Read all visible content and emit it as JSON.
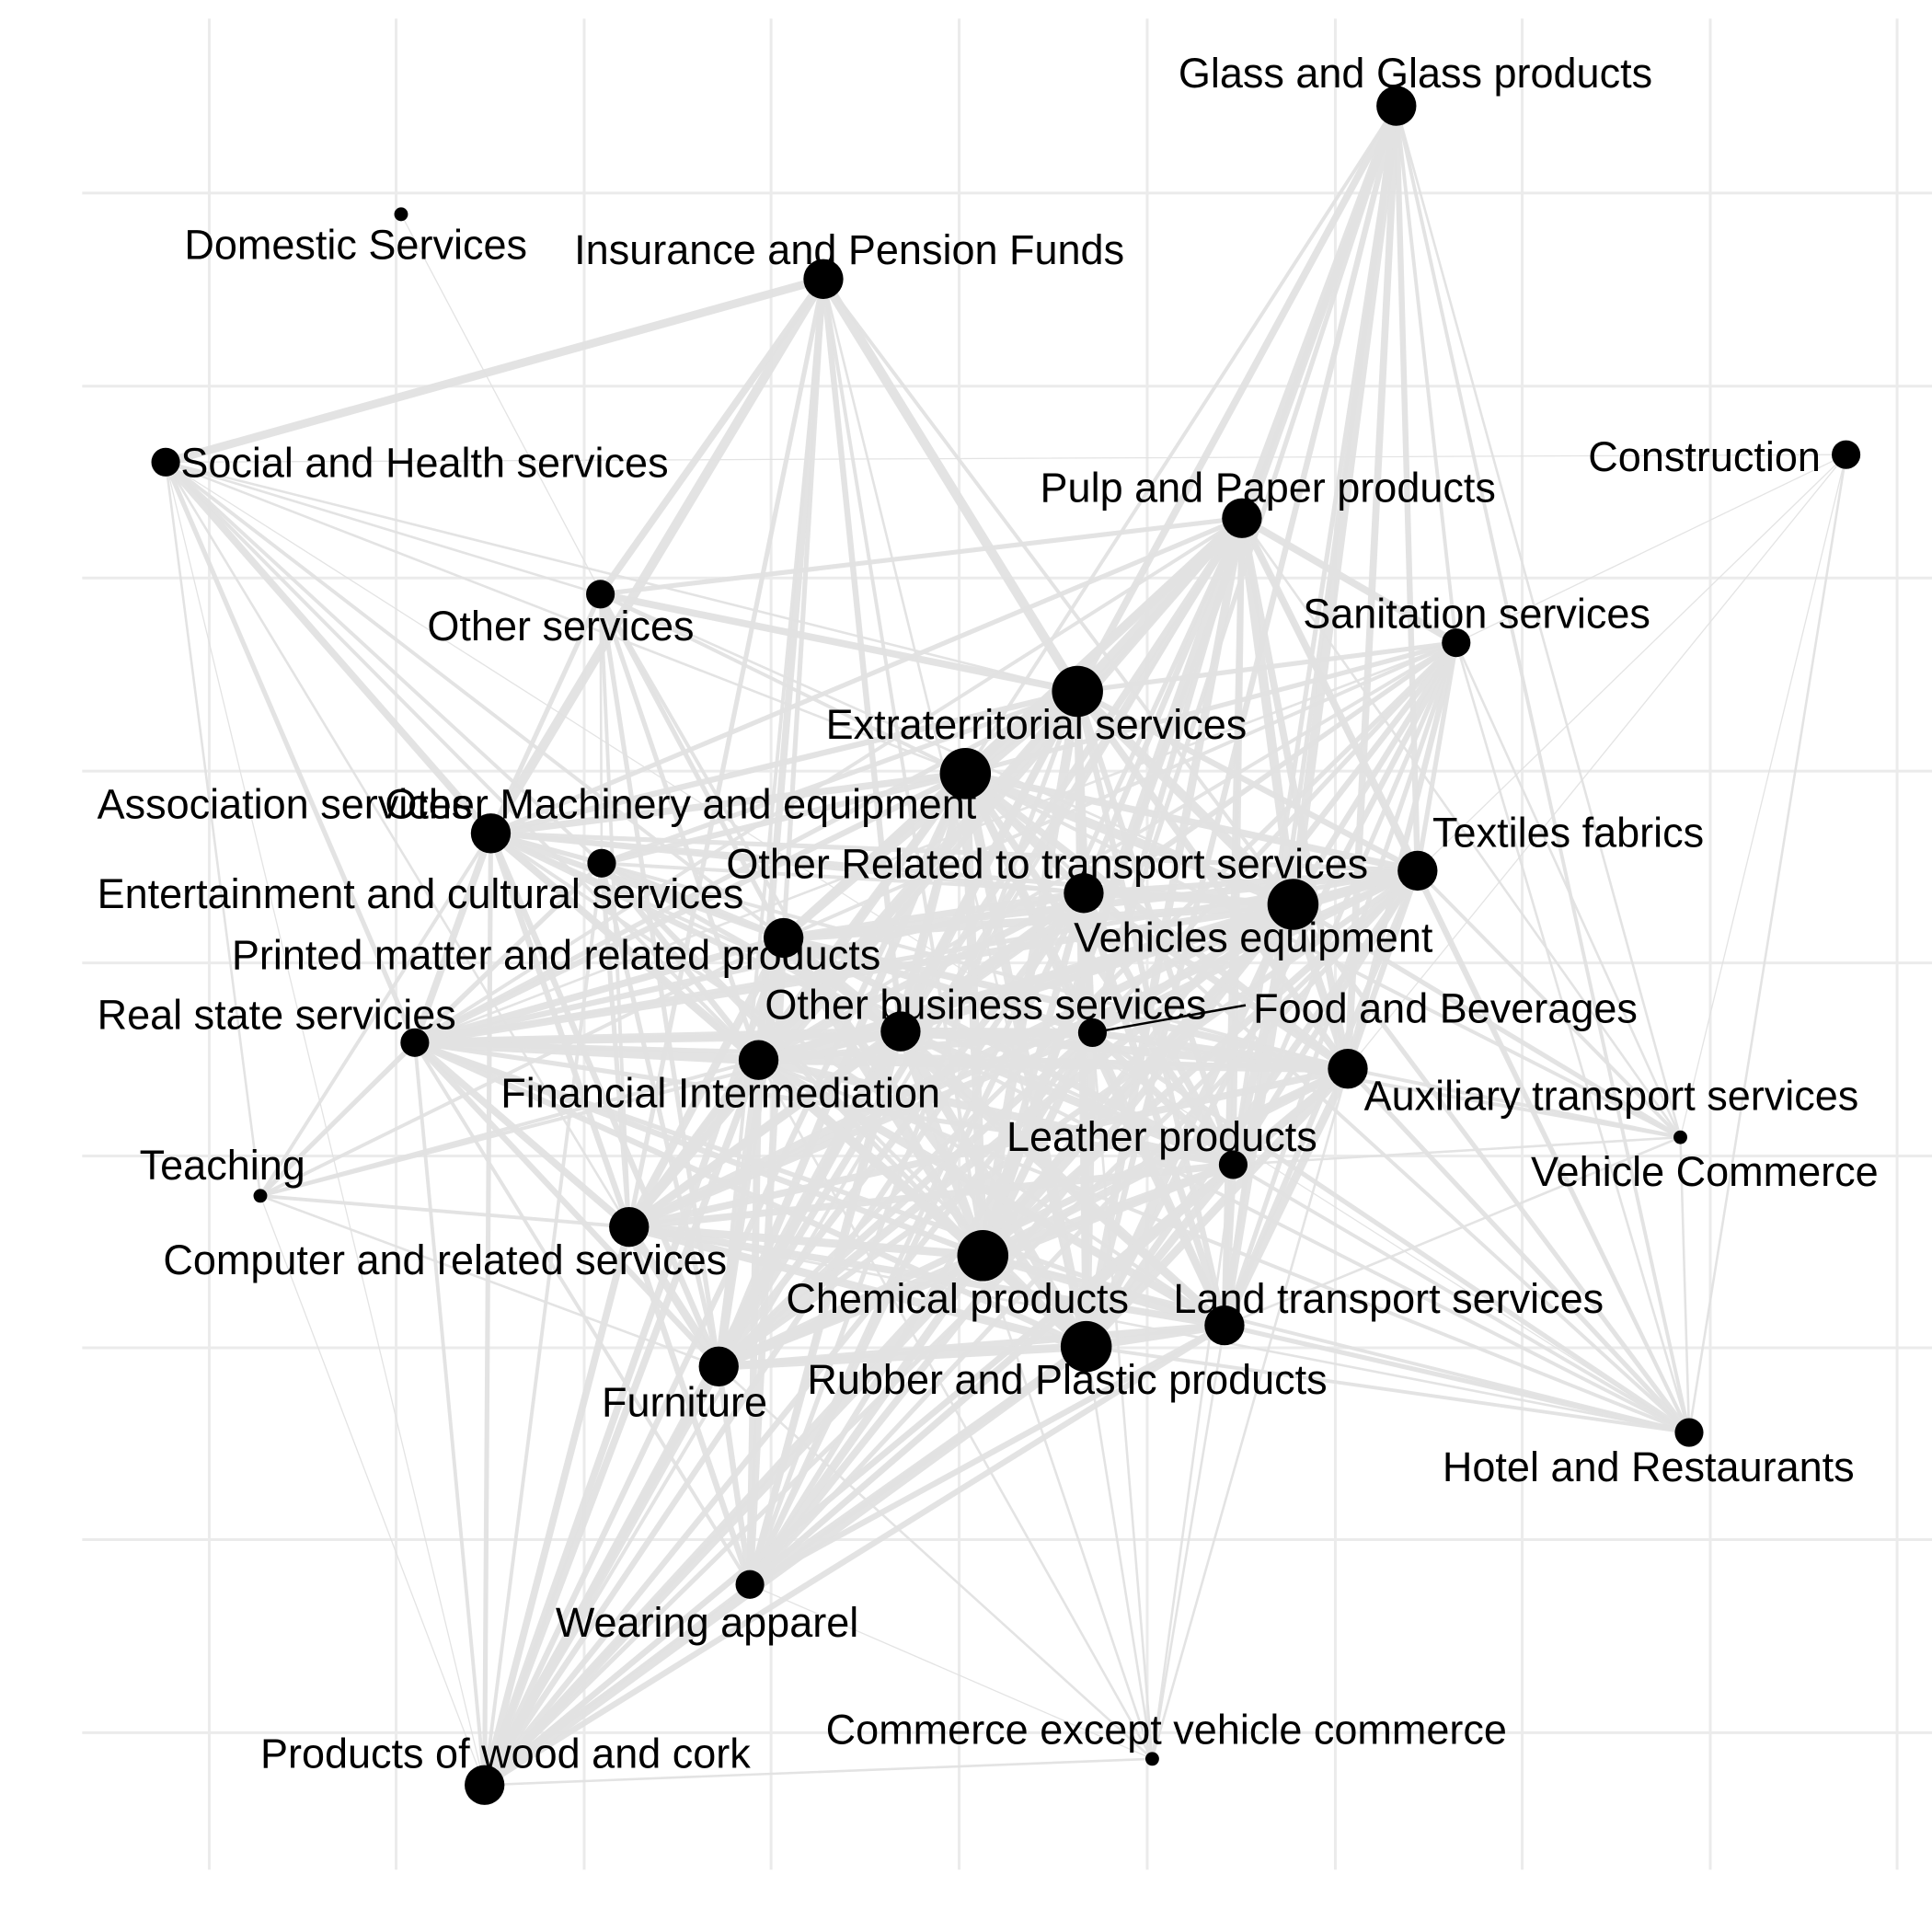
{
  "colors": {
    "edge": "#e2e2e2",
    "node": "#000000",
    "grid": "#ebebeb",
    "leader": "#000000"
  },
  "nodes": [
    {
      "id": "glass",
      "label": "Glass and Glass products",
      "size": "medium"
    },
    {
      "id": "domestic",
      "label": "Domestic Services",
      "size": "tiny"
    },
    {
      "id": "insurance",
      "label": "Insurance and Pension Funds",
      "size": "medium"
    },
    {
      "id": "social",
      "label": "Social and Health services",
      "size": "small"
    },
    {
      "id": "construction",
      "label": "Construction",
      "size": "small"
    },
    {
      "id": "pulp",
      "label": "Pulp and Paper products",
      "size": "medium"
    },
    {
      "id": "sanitation",
      "label": "Sanitation services",
      "size": "small"
    },
    {
      "id": "otherserv",
      "label": "Other services",
      "size": "small"
    },
    {
      "id": "extraterritorial",
      "label": "Extraterritorial services",
      "size": "large"
    },
    {
      "id": "othermach",
      "label": "Other Machinery and equipment",
      "size": "large"
    },
    {
      "id": "association",
      "label": "Association services",
      "size": "medium"
    },
    {
      "id": "textiles",
      "label": "Textiles fabrics",
      "size": "medium"
    },
    {
      "id": "entertainment",
      "label": "Entertainment and cultural services",
      "size": "small"
    },
    {
      "id": "othertransport",
      "label": "Other Related to transport services",
      "size": "medium"
    },
    {
      "id": "vehicles",
      "label": "Vehicles equipment",
      "size": "large"
    },
    {
      "id": "printed",
      "label": "Printed matter and related products",
      "size": "medium"
    },
    {
      "id": "otherbusiness",
      "label": "Other business services",
      "size": "medium"
    },
    {
      "id": "food",
      "label": "Food and Beverages",
      "size": "small"
    },
    {
      "id": "realstate",
      "label": "Real state servicies",
      "size": "small"
    },
    {
      "id": "financial",
      "label": "Financial Intermediation",
      "size": "medium"
    },
    {
      "id": "auxiliary",
      "label": "Auxiliary transport services",
      "size": "medium"
    },
    {
      "id": "leather",
      "label": "Leather products",
      "size": "small"
    },
    {
      "id": "vehiclecommerce",
      "label": "Vehicle Commerce",
      "size": "tiny"
    },
    {
      "id": "teaching",
      "label": "Teaching",
      "size": "tiny"
    },
    {
      "id": "computer",
      "label": "Computer and related services",
      "size": "medium"
    },
    {
      "id": "chemical",
      "label": "Chemical products",
      "size": "large"
    },
    {
      "id": "landtransport",
      "label": "Land transport services",
      "size": "medium"
    },
    {
      "id": "furniture",
      "label": "Furniture",
      "size": "medium"
    },
    {
      "id": "rubber",
      "label": "Rubber and Plastic products",
      "size": "large"
    },
    {
      "id": "hotel",
      "label": "Hotel and Restaurants",
      "size": "small"
    },
    {
      "id": "wearing",
      "label": "Wearing apparel",
      "size": "small"
    },
    {
      "id": "commerce",
      "label": "Commerce except vehicle commerce",
      "size": "tiny"
    },
    {
      "id": "wood",
      "label": "Products of wood and cork",
      "size": "medium"
    }
  ]
}
